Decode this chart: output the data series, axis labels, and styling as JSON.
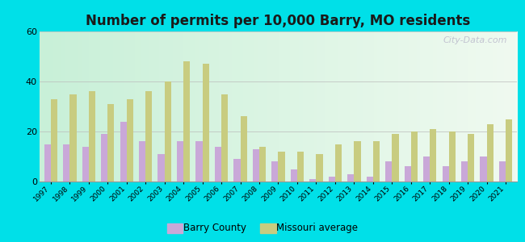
{
  "title": "Number of permits per 10,000 Barry, MO residents",
  "years": [
    1997,
    1998,
    1999,
    2000,
    2001,
    2002,
    2003,
    2004,
    2005,
    2006,
    2007,
    2008,
    2009,
    2010,
    2011,
    2012,
    2013,
    2014,
    2015,
    2016,
    2017,
    2018,
    2019,
    2020,
    2021
  ],
  "barry_county": [
    15,
    15,
    14,
    19,
    24,
    16,
    11,
    16,
    16,
    14,
    9,
    13,
    8,
    5,
    1,
    2,
    3,
    2,
    8,
    6,
    10,
    6,
    8,
    10,
    8
  ],
  "missouri_avg": [
    33,
    35,
    36,
    31,
    33,
    36,
    40,
    48,
    47,
    35,
    26,
    14,
    12,
    12,
    11,
    15,
    16,
    16,
    19,
    20,
    21,
    20,
    19,
    23,
    25
  ],
  "barry_color": "#c9a8d8",
  "missouri_color": "#c8cc80",
  "outer_background": "#00e0e8",
  "ylim": [
    0,
    60
  ],
  "yticks": [
    0,
    20,
    40,
    60
  ],
  "bar_width": 0.35,
  "title_fontsize": 12,
  "legend_barry": "Barry County",
  "legend_missouri": "Missouri average",
  "watermark": "City-Data.com"
}
